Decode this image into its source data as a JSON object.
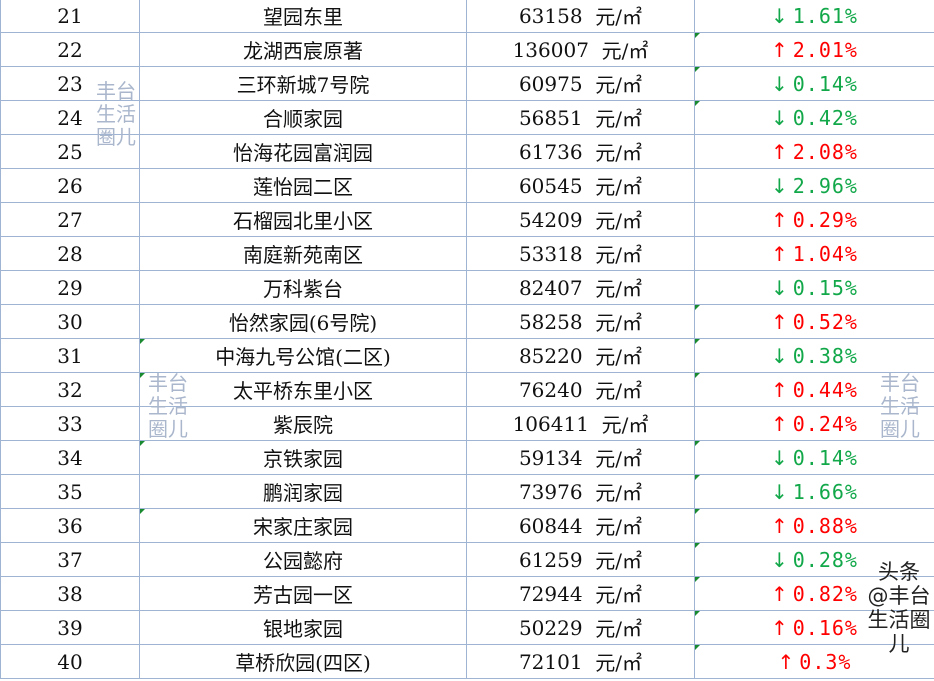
{
  "unit": "元/㎡",
  "colors": {
    "up": "#ff0000",
    "down": "#12a84a",
    "grid": "#9fb4d2"
  },
  "rows": [
    {
      "rank": "21",
      "name": "望园东里",
      "price": "63158",
      "dir": "down",
      "change": "1.61%"
    },
    {
      "rank": "22",
      "name": "龙湖西宸原著",
      "price": "136007",
      "dir": "up",
      "change": "2.01%"
    },
    {
      "rank": "23",
      "name": "三环新城7号院",
      "price": "60975",
      "dir": "down",
      "change": "0.14%"
    },
    {
      "rank": "24",
      "name": "合顺家园",
      "price": "56851",
      "dir": "down",
      "change": "0.42%"
    },
    {
      "rank": "25",
      "name": "怡海花园富润园",
      "price": "61736",
      "dir": "up",
      "change": "2.08%"
    },
    {
      "rank": "26",
      "name": "莲怡园二区",
      "price": "60545",
      "dir": "down",
      "change": "2.96%"
    },
    {
      "rank": "27",
      "name": "石榴园北里小区",
      "price": "54209",
      "dir": "up",
      "change": "0.29%"
    },
    {
      "rank": "28",
      "name": "南庭新苑南区",
      "price": "53318",
      "dir": "up",
      "change": "1.04%"
    },
    {
      "rank": "29",
      "name": "万科紫台",
      "price": "82407",
      "dir": "down",
      "change": "0.15%"
    },
    {
      "rank": "30",
      "name": "怡然家园(6号院)",
      "price": "58258",
      "dir": "up",
      "change": "0.52%"
    },
    {
      "rank": "31",
      "name": "中海九号公馆(二区)",
      "price": "85220",
      "dir": "down",
      "change": "0.38%"
    },
    {
      "rank": "32",
      "name": "太平桥东里小区",
      "price": "76240",
      "dir": "up",
      "change": "0.44%"
    },
    {
      "rank": "33",
      "name": "紫辰院",
      "price": "106411",
      "dir": "up",
      "change": "0.24%"
    },
    {
      "rank": "34",
      "name": "京铁家园",
      "price": "59134",
      "dir": "down",
      "change": "0.14%"
    },
    {
      "rank": "35",
      "name": "鹏润家园",
      "price": "73976",
      "dir": "down",
      "change": "1.66%"
    },
    {
      "rank": "36",
      "name": "宋家庄家园",
      "price": "60844",
      "dir": "up",
      "change": "0.88%"
    },
    {
      "rank": "37",
      "name": "公园懿府",
      "price": "61259",
      "dir": "down",
      "change": "0.28%"
    },
    {
      "rank": "38",
      "name": "芳古园一区",
      "price": "72944",
      "dir": "up",
      "change": "0.82%"
    },
    {
      "rank": "39",
      "name": "银地家园",
      "price": "50229",
      "dir": "up",
      "change": "0.16%"
    },
    {
      "rank": "40",
      "name": "草桥欣园(四区)",
      "price": "72101",
      "dir": "up",
      "change": "0.3%"
    }
  ],
  "watermarks": [
    "丰台生活圈儿",
    "丰台生活圈儿",
    "丰台生活圈儿"
  ],
  "credit": "头条 @丰台生活圈儿"
}
